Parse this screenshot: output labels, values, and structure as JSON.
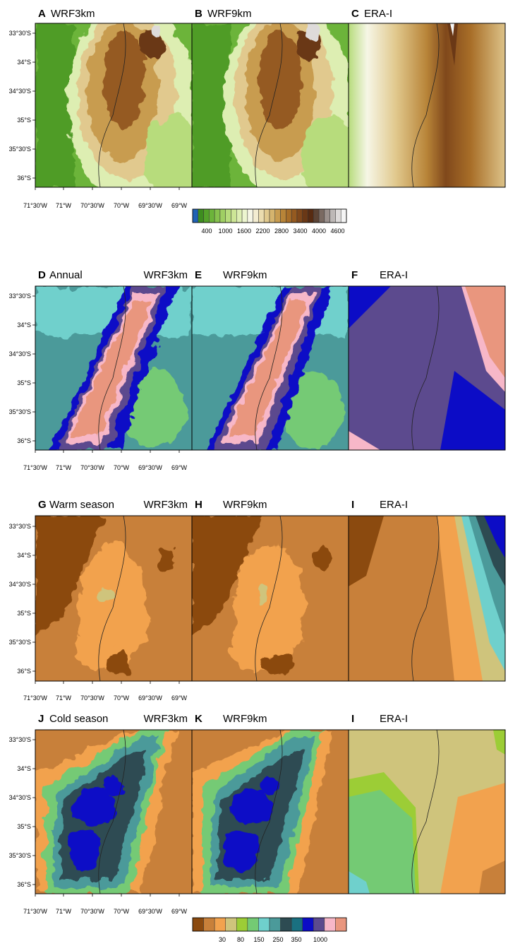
{
  "rows": [
    {
      "panels": [
        {
          "letter": "A",
          "title": "WRF3km",
          "extra": ""
        },
        {
          "letter": "B",
          "title": "WRF9km",
          "extra": ""
        },
        {
          "letter": "C",
          "title": "ERA-I",
          "extra": ""
        }
      ],
      "lat_ticks": [
        "33°30'S",
        "34°S",
        "34°30'S",
        "35°S",
        "35°30'S",
        "36°S"
      ],
      "lon_ticks": [
        "71°30'W",
        "71°W",
        "70°30'W",
        "70°W",
        "69°30'W",
        "69°W"
      ]
    },
    {
      "panels": [
        {
          "letter": "D",
          "title": "WRF3km",
          "extra": "Annual"
        },
        {
          "letter": "E",
          "title": "WRF9km",
          "extra": ""
        },
        {
          "letter": "F",
          "title": "ERA-I",
          "extra": ""
        }
      ],
      "lat_ticks": [
        "33°30'S",
        "34°S",
        "34°30'S",
        "35°S",
        "35°30'S",
        "36°S"
      ],
      "lon_ticks": [
        "71°30'W",
        "71°W",
        "70°30'W",
        "70°W",
        "69°30'W",
        "69°W"
      ]
    },
    {
      "panels": [
        {
          "letter": "G",
          "title": "WRF3km",
          "extra": "Warm season"
        },
        {
          "letter": "H",
          "title": "WRF9km",
          "extra": ""
        },
        {
          "letter": "I",
          "title": "ERA-I",
          "extra": ""
        }
      ],
      "lat_ticks": [
        "33°30'S",
        "34°S",
        "34°30'S",
        "35°S",
        "35°30'S",
        "36°S"
      ],
      "lon_ticks": [
        "71°30'W",
        "71°W",
        "70°30'W",
        "70°W",
        "69°30'W",
        "69°W"
      ]
    },
    {
      "panels": [
        {
          "letter": "J",
          "title": "WRF3km",
          "extra": "Cold season"
        },
        {
          "letter": "K",
          "title": "WRF9km",
          "extra": ""
        },
        {
          "letter": "I",
          "title": "ERA-I",
          "extra": ""
        }
      ],
      "lat_ticks": [
        "33°30'S",
        "34°S",
        "34°30'S",
        "35°S",
        "35°30'S",
        "36°S"
      ],
      "lon_ticks": [
        "71°30'W",
        "71°W",
        "70°30'W",
        "70°W",
        "69°30'W",
        "69°W"
      ]
    }
  ],
  "elevation_colorbar": {
    "labels": [
      "400",
      "1000",
      "1600",
      "2200",
      "2800",
      "3400",
      "4000",
      "4600"
    ],
    "colors": [
      "#1f62b5",
      "#3e8d1f",
      "#54a22a",
      "#6cb43a",
      "#86c24d",
      "#9fcf63",
      "#b7dc7c",
      "#cde696",
      "#ddeeb2",
      "#ecf5cf",
      "#f6f6e6",
      "#f3ecd0",
      "#ebdcaf",
      "#e1c98e",
      "#d5b46e",
      "#c89c50",
      "#b88438",
      "#a86e28",
      "#955a20",
      "#80481b",
      "#6a3816",
      "#572b12",
      "#5c4436",
      "#7a6a62",
      "#9b918d",
      "#bdb8b6",
      "#dedbda",
      "#f5f5f5"
    ]
  },
  "precip_colorbar": {
    "labels": [
      "30",
      "80",
      "150",
      "250",
      "350",
      "1000"
    ],
    "colors": [
      "#8b4a0f",
      "#c8803a",
      "#f2a24e",
      "#cfc47c",
      "#9ccd36",
      "#74ca74",
      "#6fd0cc",
      "#4b9a9a",
      "#2d4b52",
      "#1a7080",
      "#0c0cc6",
      "#5c4a8e",
      "#f7b7c8",
      "#e9967e"
    ]
  }
}
